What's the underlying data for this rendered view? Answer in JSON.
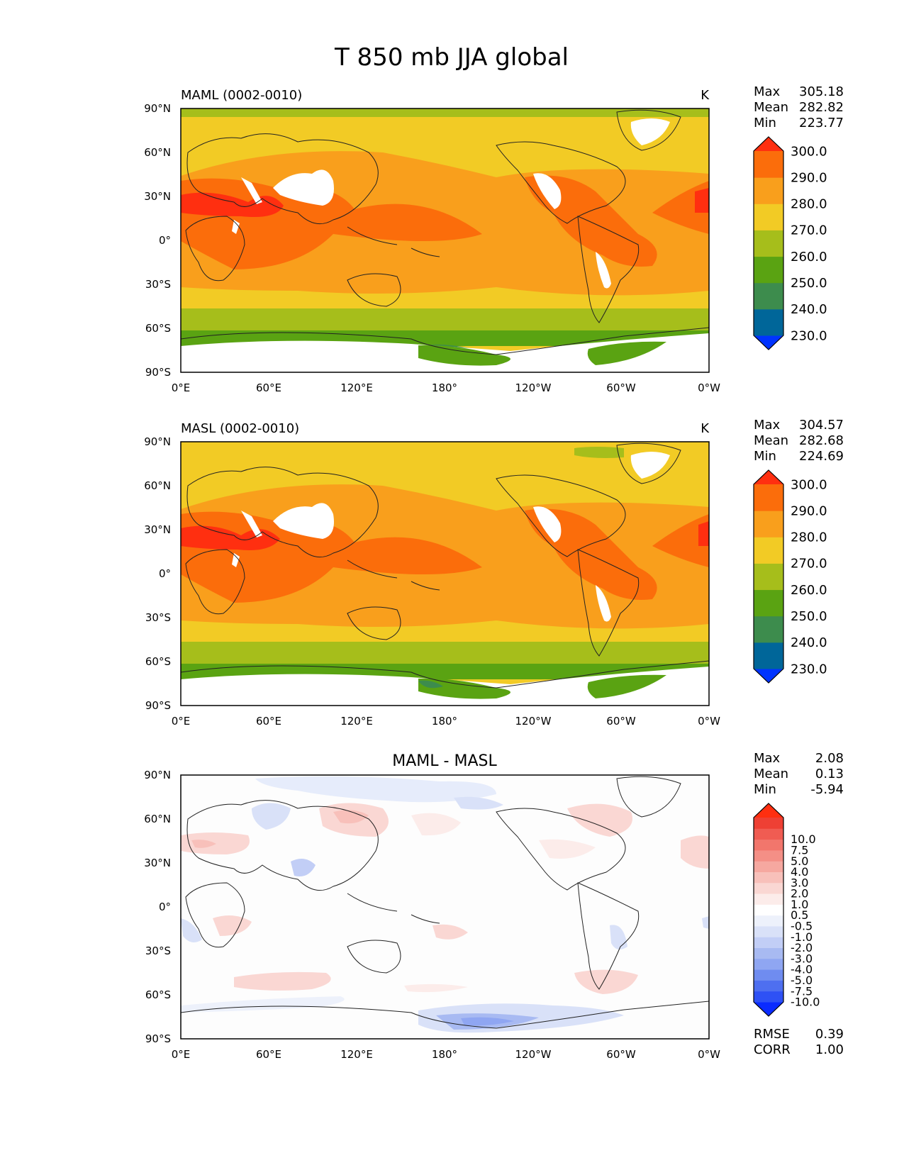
{
  "figure": {
    "title": "T 850 mb JJA global"
  },
  "axes": {
    "lat_ticks": [
      "90°N",
      "60°N",
      "30°N",
      "0°",
      "30°S",
      "60°S",
      "90°S"
    ],
    "lon_ticks": [
      "0°E",
      "60°E",
      "120°E",
      "180°",
      "120°W",
      "60°W",
      "0°W"
    ]
  },
  "panels": [
    {
      "id": "maml",
      "left_title": "MAML (0002-0010)",
      "center_title": "",
      "units": "K",
      "stats": [
        {
          "label": "Max",
          "value": "305.18"
        },
        {
          "label": "Mean",
          "value": "282.82"
        },
        {
          "label": "Min",
          "value": "223.77"
        }
      ],
      "colorbar": {
        "colors": [
          "#0033ff",
          "#006699",
          "#3d8c4d",
          "#5aa312",
          "#a6be1b",
          "#f2cb25",
          "#f99f1c",
          "#fb6d0b",
          "#ff2f10"
        ],
        "labels": [
          "230.0",
          "240.0",
          "250.0",
          "260.0",
          "270.0",
          "280.0",
          "290.0",
          "300.0"
        ]
      },
      "extra_stats": []
    },
    {
      "id": "masl",
      "left_title": "MASL (0002-0010)",
      "center_title": "",
      "units": "K",
      "stats": [
        {
          "label": "Max",
          "value": "304.57"
        },
        {
          "label": "Mean",
          "value": "282.68"
        },
        {
          "label": "Min",
          "value": "224.69"
        }
      ],
      "colorbar": {
        "colors": [
          "#0033ff",
          "#006699",
          "#3d8c4d",
          "#5aa312",
          "#a6be1b",
          "#f2cb25",
          "#f99f1c",
          "#fb6d0b",
          "#ff2f10"
        ],
        "labels": [
          "230.0",
          "240.0",
          "250.0",
          "260.0",
          "270.0",
          "280.0",
          "290.0",
          "300.0"
        ]
      },
      "extra_stats": []
    },
    {
      "id": "diff",
      "left_title": "",
      "center_title": "MAML - MASL",
      "units": "",
      "stats": [
        {
          "label": "Max",
          "value": "2.08"
        },
        {
          "label": "Mean",
          "value": "0.13"
        },
        {
          "label": "Min",
          "value": "-5.94"
        }
      ],
      "colorbar": {
        "colors": [
          "#0a2bff",
          "#2e51f5",
          "#4e6ff0",
          "#6f8cf0",
          "#8fa6f2",
          "#a8baf2",
          "#c2cef6",
          "#d9e1f8",
          "#edf1fb",
          "#ffffff",
          "#fcecea",
          "#fad7d3",
          "#f8c0ba",
          "#f6a8a0",
          "#f48f86",
          "#f2766c",
          "#f05c52",
          "#ee4034",
          "#ff2f10"
        ],
        "labels": [
          "-10.0",
          "-7.5",
          "-5.0",
          "-4.0",
          "-3.0",
          "-2.0",
          "-1.0",
          "-0.5",
          "0.5",
          "1.0",
          "2.0",
          "3.0",
          "4.0",
          "5.0",
          "7.5",
          "10.0"
        ]
      },
      "extra_stats": [
        {
          "label": "RMSE",
          "value": "0.39"
        },
        {
          "label": "CORR",
          "value": "1.00"
        }
      ]
    }
  ]
}
